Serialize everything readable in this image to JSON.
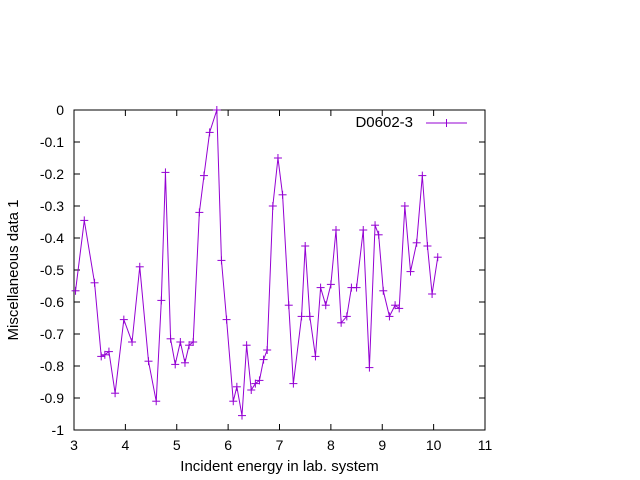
{
  "chart_data": {
    "type": "line",
    "xlabel": "Incident energy in lab. system",
    "ylabel": "Miscellaneous data 1",
    "xlim": [
      3,
      11
    ],
    "ylim": [
      -1,
      0
    ],
    "xticks": [
      3,
      4,
      5,
      6,
      7,
      8,
      9,
      10,
      11
    ],
    "yticks": [
      0,
      -0.1,
      -0.2,
      -0.3,
      -0.4,
      -0.5,
      -0.6,
      -0.7,
      -0.8,
      -0.9,
      -1
    ],
    "ytick_labels": [
      "0",
      "-0.1",
      "-0.2",
      "-0.3",
      "-0.4",
      "-0.5",
      "-0.6",
      "-0.7",
      "-0.8",
      "-0.9",
      "-1"
    ],
    "grid": false,
    "legend_position": "top-right",
    "series": [
      {
        "name": "D0602-3",
        "color": "#9400d3",
        "marker": "plus",
        "x": [
          3.03,
          3.2,
          3.4,
          3.53,
          3.6,
          3.68,
          3.8,
          3.97,
          4.13,
          4.28,
          4.45,
          4.6,
          4.7,
          4.78,
          4.88,
          4.97,
          5.07,
          5.16,
          5.24,
          5.32,
          5.44,
          5.53,
          5.64,
          5.78,
          5.87,
          5.97,
          6.1,
          6.17,
          6.27,
          6.36,
          6.45,
          6.53,
          6.61,
          6.69,
          6.76,
          6.87,
          6.97,
          7.06,
          7.18,
          7.27,
          7.43,
          7.5,
          7.59,
          7.7,
          7.8,
          7.9,
          8.0,
          8.1,
          8.2,
          8.31,
          8.4,
          8.5,
          8.63,
          8.75,
          8.86,
          8.93,
          9.02,
          9.14,
          9.25,
          9.33,
          9.44,
          9.55,
          9.67,
          9.78,
          9.88,
          9.97,
          10.08
        ],
        "y": [
          -0.565,
          -0.345,
          -0.54,
          -0.77,
          -0.765,
          -0.755,
          -0.885,
          -0.655,
          -0.725,
          -0.49,
          -0.785,
          -0.91,
          -0.595,
          -0.195,
          -0.715,
          -0.795,
          -0.725,
          -0.79,
          -0.735,
          -0.725,
          -0.32,
          -0.205,
          -0.07,
          0.0,
          -0.47,
          -0.655,
          -0.91,
          -0.865,
          -0.955,
          -0.735,
          -0.875,
          -0.855,
          -0.845,
          -0.78,
          -0.75,
          -0.3,
          -0.15,
          -0.265,
          -0.61,
          -0.855,
          -0.645,
          -0.425,
          -0.645,
          -0.77,
          -0.555,
          -0.61,
          -0.545,
          -0.375,
          -0.665,
          -0.645,
          -0.555,
          -0.555,
          -0.375,
          -0.805,
          -0.36,
          -0.39,
          -0.565,
          -0.645,
          -0.61,
          -0.62,
          -0.3,
          -0.505,
          -0.415,
          -0.205,
          -0.425,
          -0.575,
          -0.46
        ]
      }
    ]
  }
}
